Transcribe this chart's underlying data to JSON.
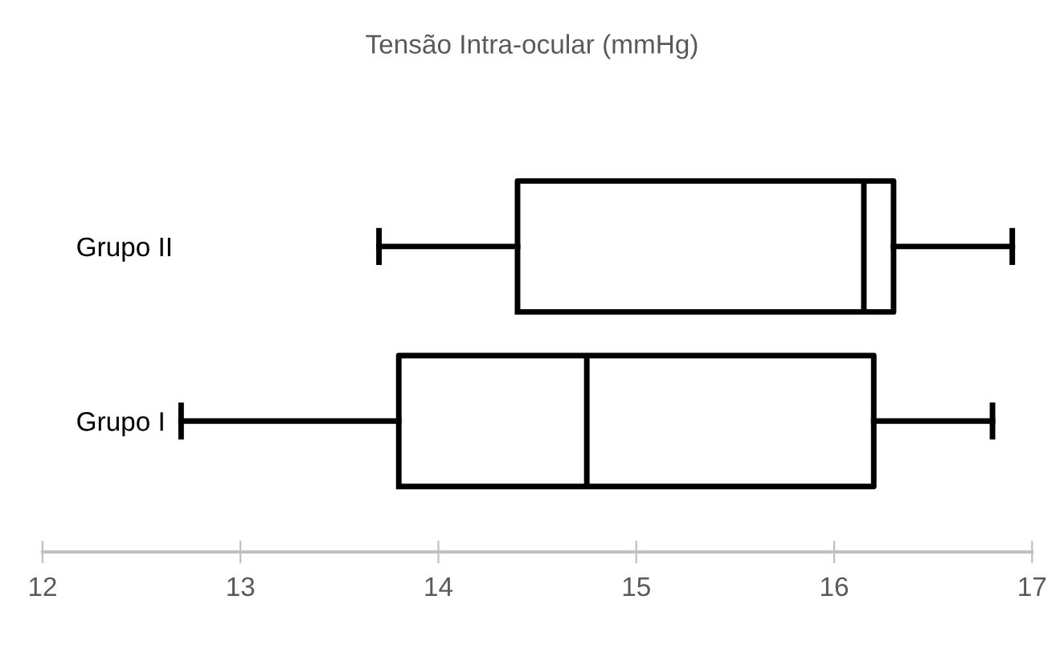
{
  "chart_data": {
    "type": "box",
    "orientation": "horizontal",
    "title": "Tensão Intra-ocular (mmHg)",
    "categories": [
      "Grupo II",
      "Grupo I"
    ],
    "boxes": [
      {
        "low": 13.7,
        "q1": 14.4,
        "median": 16.15,
        "q3": 16.3,
        "high": 16.9
      },
      {
        "low": 12.7,
        "q1": 13.8,
        "median": 14.75,
        "q3": 16.2,
        "high": 16.8
      }
    ],
    "xlim": [
      12,
      17
    ],
    "xticks": [
      12,
      13,
      14,
      15,
      16,
      17
    ],
    "grid": false,
    "legend": false
  }
}
